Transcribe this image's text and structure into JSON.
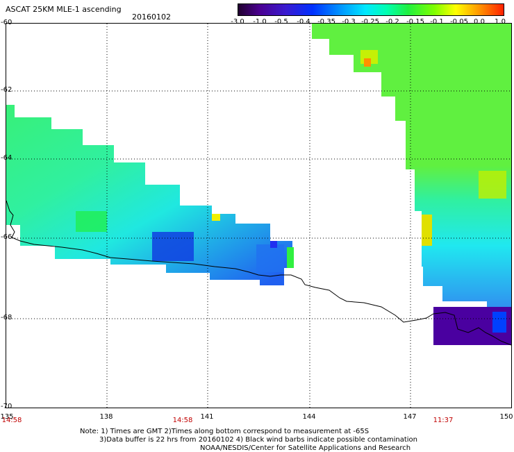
{
  "title": {
    "product": "ASCAT 25KM MLE-1 ascending",
    "date": "20160102"
  },
  "colorbar": {
    "ticks": [
      "-3.0",
      "-1.0",
      "-0.5",
      "-0.4",
      "-0.35",
      "-0.3",
      "-0.25",
      "-0.2",
      "-0.15",
      "-0.1",
      "-0.05",
      "0.0",
      "1.0"
    ],
    "colors": [
      "#20002e",
      "#4a0090",
      "#3a1bd0",
      "#0030ff",
      "#0090ff",
      "#00e8ff",
      "#00ffb0",
      "#20f040",
      "#80ff00",
      "#ffff00",
      "#ffa000",
      "#ff2000"
    ]
  },
  "map": {
    "lat_labels": [
      "-60",
      "-62",
      "-64",
      "-66",
      "-68",
      "-70"
    ],
    "lon_labels": [
      "135",
      "138",
      "141",
      "144",
      "147",
      "150"
    ],
    "time_labels": [
      "14:58",
      "14:58",
      "11:37"
    ]
  },
  "notes": {
    "line1": "Note: 1) Times are GMT 2)Times along bottom correspond to measurement at -65S",
    "line2": "3)Data buffer is 22 hrs from 20160102 4) Black wind barbs indicate possible contamination",
    "line3": "NOAA/NESDIS/Center for Satellite Applications and Research"
  }
}
